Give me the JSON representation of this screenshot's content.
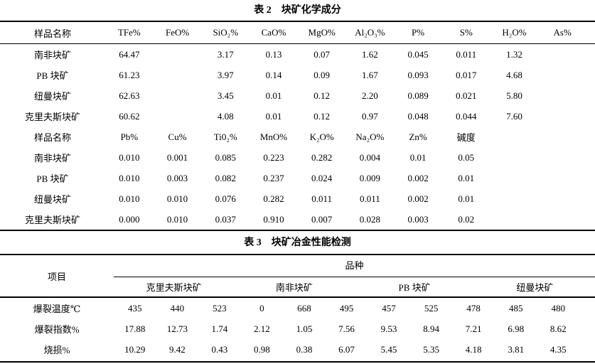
{
  "table2": {
    "title": "表 2　块矿化学成分",
    "sections": [
      {
        "header": [
          "样品名称",
          "TFe%",
          "FeO%",
          "SiO₂%",
          "CaO%",
          "MgO%",
          "Al₂O₃%",
          "P%",
          "S%",
          "H₂O%",
          "As%"
        ],
        "rows": [
          [
            "南非块矿",
            "64.47",
            "",
            "3.17",
            "0.13",
            "0.07",
            "1.62",
            "0.045",
            "0.011",
            "1.32",
            ""
          ],
          [
            "PB 块矿",
            "61.23",
            "",
            "3.97",
            "0.14",
            "0.09",
            "1.67",
            "0.093",
            "0.017",
            "4.68",
            ""
          ],
          [
            "纽曼块矿",
            "62.63",
            "",
            "3.45",
            "0.01",
            "0.12",
            "2.20",
            "0.089",
            "0.021",
            "5.80",
            ""
          ],
          [
            "克里夫斯块矿",
            "60.62",
            "",
            "4.08",
            "0.01",
            "0.12",
            "0.97",
            "0.048",
            "0.044",
            "7.60",
            ""
          ]
        ]
      },
      {
        "header": [
          "样品名称",
          "Pb%",
          "Cu%",
          "Ti0₂%",
          "MnO%",
          "K₂O%",
          "Na₂O%",
          "Zn%",
          "碱度",
          "",
          ""
        ],
        "rows": [
          [
            "南非块矿",
            "0.010",
            "0.001",
            "0.085",
            "0.223",
            "0.282",
            "0.004",
            "0.01",
            "0.05",
            "",
            ""
          ],
          [
            "PB 块矿",
            "0.010",
            "0.003",
            "0.082",
            "0.237",
            "0.024",
            "0.009",
            "0.002",
            "0.01",
            "",
            ""
          ],
          [
            "纽曼块矿",
            "0.010",
            "0.010",
            "0.076",
            "0.282",
            "0.011",
            "0.011",
            "0.002",
            "0.01",
            "",
            ""
          ],
          [
            "克里夫斯块矿",
            "0.000",
            "0.010",
            "0.037",
            "0.910",
            "0.007",
            "0.028",
            "0.003",
            "0.02",
            "",
            ""
          ]
        ]
      }
    ]
  },
  "table3": {
    "title": "表 3　块矿冶金性能检测",
    "item_label": "项目",
    "variety_label": "品种",
    "groups": [
      "克里夫斯块矿",
      "南非块矿",
      "PB 块矿",
      "纽曼块矿"
    ],
    "rows": [
      [
        "爆裂温度℃",
        "435",
        "440",
        "523",
        "0",
        "668",
        "495",
        "457",
        "525",
        "478",
        "485",
        "480"
      ],
      [
        "爆裂指数%",
        "17.88",
        "12.73",
        "1.74",
        "2.12",
        "1.05",
        "7.56",
        "9.53",
        "8.94",
        "7.21",
        "6.98",
        "8.62"
      ],
      [
        "烧损%",
        "10.29",
        "9.42",
        "0.43",
        "0.98",
        "0.38",
        "6.07",
        "5.45",
        "5.35",
        "4.18",
        "3.81",
        "4.35"
      ]
    ]
  }
}
